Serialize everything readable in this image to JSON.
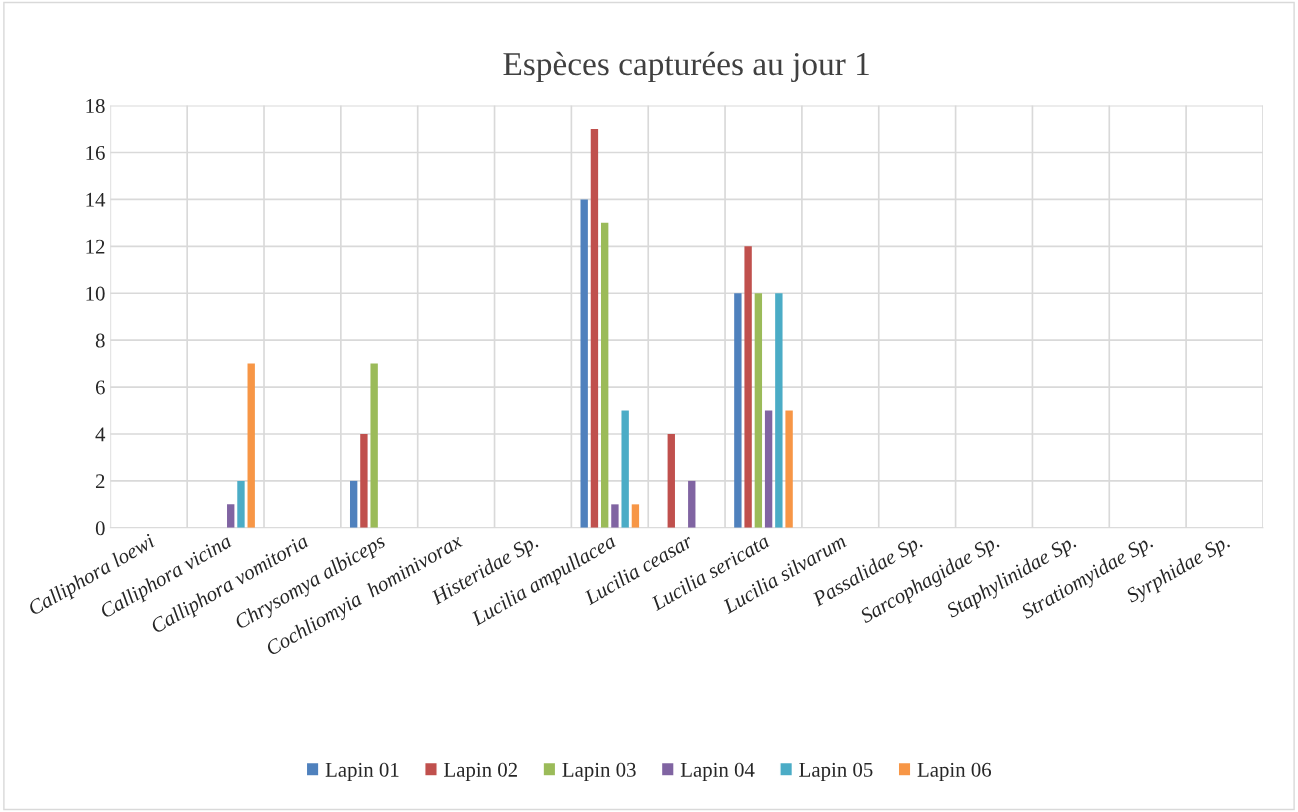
{
  "chart_data": {
    "type": "bar",
    "title": "Espèces capturées au jour 1",
    "categories": [
      "Calliphora loewi",
      "Calliphora vicina",
      "Calliphora vomitoria",
      "Chrysomya albiceps",
      "Cochliomyia  hominivorax",
      "Histeridae Sp.",
      "Lucilia ampullacea",
      "Lucilia ceasar",
      "Lucilia sericata",
      "Lucilia silvarum",
      "Passalidae Sp.",
      "Sarcophagidae Sp.",
      "Staphylinidae Sp.",
      "Stratiomyidae Sp.",
      "Syrphidae Sp."
    ],
    "series": [
      {
        "name": "Lapin 01",
        "color": "#4f81bd",
        "values": [
          null,
          null,
          null,
          2,
          null,
          null,
          14,
          null,
          10,
          null,
          null,
          null,
          null,
          null,
          null
        ]
      },
      {
        "name": "Lapin 02",
        "color": "#c0504d",
        "values": [
          null,
          null,
          null,
          4,
          null,
          null,
          17,
          4,
          12,
          null,
          null,
          null,
          null,
          null,
          null
        ]
      },
      {
        "name": "Lapin 03",
        "color": "#9bbb59",
        "values": [
          null,
          null,
          null,
          7,
          null,
          null,
          13,
          null,
          10,
          null,
          null,
          null,
          null,
          null,
          null
        ]
      },
      {
        "name": "Lapin 04",
        "color": "#8064a2",
        "values": [
          null,
          1,
          null,
          null,
          null,
          null,
          1,
          2,
          5,
          null,
          null,
          null,
          null,
          null,
          null
        ]
      },
      {
        "name": "Lapin 05",
        "color": "#4bacc6",
        "values": [
          null,
          2,
          null,
          null,
          null,
          null,
          5,
          null,
          10,
          null,
          null,
          null,
          null,
          null,
          null
        ]
      },
      {
        "name": "Lapin 06",
        "color": "#f79646",
        "values": [
          null,
          7,
          null,
          null,
          null,
          null,
          1,
          null,
          5,
          null,
          null,
          null,
          null,
          null,
          null
        ]
      }
    ],
    "ylim": [
      0,
      18
    ],
    "yticks": [
      0,
      2,
      4,
      6,
      8,
      10,
      12,
      14,
      16,
      18
    ],
    "grid": true,
    "legend": "bottom"
  }
}
